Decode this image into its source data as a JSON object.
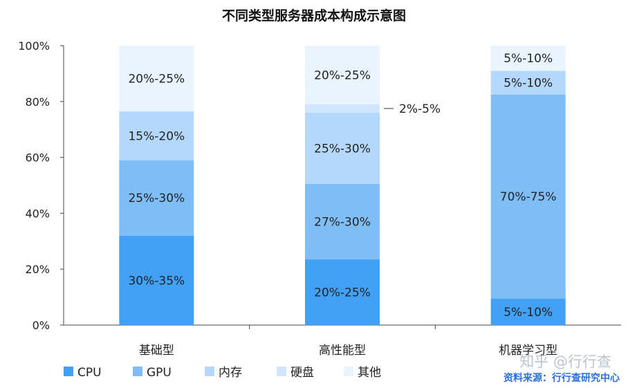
{
  "chart_data": {
    "type": "bar",
    "stacked": true,
    "title": "不同类型服务器成本构成示意图",
    "categories": [
      "基础型",
      "高性能型",
      "机器学习型"
    ],
    "yticks": [
      "0%",
      "20%",
      "40%",
      "60%",
      "80%",
      "100%"
    ],
    "ylim": [
      0,
      100
    ],
    "legend_position": "bottom-left",
    "series": [
      {
        "name": "CPU",
        "color": "#42a0f7",
        "values": [
          32,
          23.5,
          9.5
        ],
        "labels": [
          "30%-35%",
          "20%-25%",
          "5%-10%"
        ]
      },
      {
        "name": "GPU",
        "color": "#7fbdf7",
        "values": [
          27,
          27,
          73
        ],
        "labels": [
          "25%-30%",
          "27%-30%",
          "70%-75%"
        ]
      },
      {
        "name": "内存",
        "color": "#b3d8fb",
        "values": [
          17.5,
          25.5,
          8.5
        ],
        "labels": [
          "15%-20%",
          "25%-30%",
          "5%-10%"
        ]
      },
      {
        "name": "硬盘",
        "color": "#d0e6fc",
        "values": [
          0,
          3,
          0
        ],
        "labels": [
          "",
          "2%-5%",
          ""
        ]
      },
      {
        "name": "其他",
        "color": "#e9f4fe",
        "values": [
          23.5,
          21,
          9
        ],
        "labels": [
          "20%-25%",
          "20%-25%",
          "5%-10%"
        ]
      }
    ],
    "source": "资料来源：行行查研究中心",
    "watermark": "知乎 @行行查"
  }
}
